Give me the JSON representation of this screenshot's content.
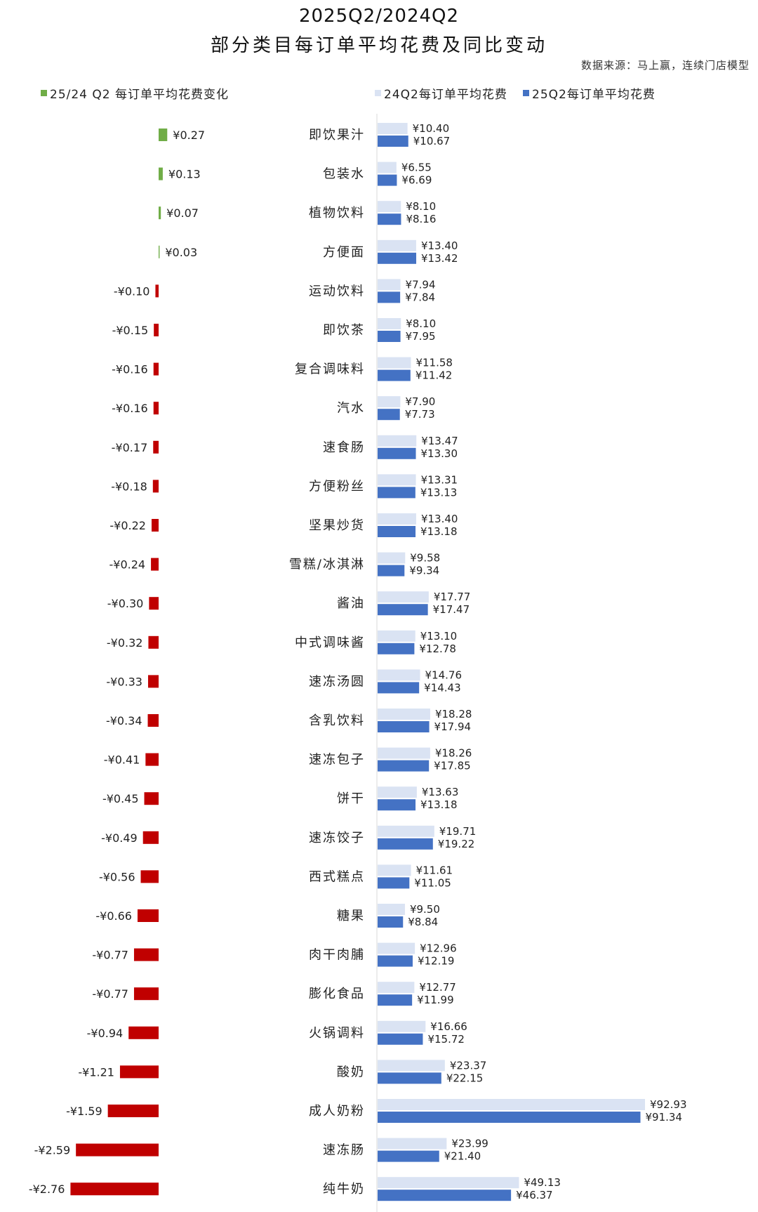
{
  "title_line1": "2025Q2/2024Q2",
  "title_line2": "部分类目每订单平均花费及同比变动",
  "source": "数据来源：马上赢，连续门店模型",
  "legend": {
    "change": "25/24 Q2 每订单平均花费变化",
    "prev": "24Q2每订单平均花费",
    "curr": "25Q2每订单平均花费"
  },
  "colors": {
    "positive": "#70ad47",
    "negative": "#c00000",
    "prev": "#dae3f3",
    "curr": "#4472c4"
  },
  "chart_data": {
    "type": "bar",
    "currency": "¥",
    "categories": [
      "即饮果汁",
      "包装水",
      "植物饮料",
      "方便面",
      "运动饮料",
      "即饮茶",
      "复合调味料",
      "汽水",
      "速食肠",
      "方便粉丝",
      "坚果炒货",
      "雪糕/冰淇淋",
      "酱油",
      "中式调味酱",
      "速冻汤圆",
      "含乳饮料",
      "速冻包子",
      "饼干",
      "速冻饺子",
      "西式糕点",
      "糖果",
      "肉干肉脯",
      "膨化食品",
      "火锅调料",
      "酸奶",
      "成人奶粉",
      "速冻肠",
      "纯牛奶"
    ],
    "series": [
      {
        "name": "25/24 Q2 每订单平均花费变化",
        "values": [
          0.27,
          0.13,
          0.07,
          0.03,
          -0.1,
          -0.15,
          -0.16,
          -0.16,
          -0.17,
          -0.18,
          -0.22,
          -0.24,
          -0.3,
          -0.32,
          -0.33,
          -0.34,
          -0.41,
          -0.45,
          -0.49,
          -0.56,
          -0.66,
          -0.77,
          -0.77,
          -0.94,
          -1.21,
          -1.59,
          -2.59,
          -2.76
        ]
      },
      {
        "name": "24Q2每订单平均花费",
        "values": [
          10.4,
          6.55,
          8.1,
          13.4,
          7.94,
          8.1,
          11.58,
          7.9,
          13.47,
          13.31,
          13.4,
          9.58,
          17.77,
          13.1,
          14.76,
          18.28,
          18.26,
          13.63,
          19.71,
          11.61,
          9.5,
          12.96,
          12.77,
          16.66,
          23.37,
          92.93,
          23.99,
          49.13
        ]
      },
      {
        "name": "25Q2每订单平均花费",
        "values": [
          10.67,
          6.69,
          8.16,
          13.42,
          7.84,
          7.95,
          11.42,
          7.73,
          13.3,
          13.13,
          13.18,
          9.34,
          17.47,
          12.78,
          14.43,
          17.94,
          17.85,
          13.18,
          19.22,
          11.05,
          8.84,
          12.19,
          11.99,
          15.72,
          22.15,
          91.34,
          21.4,
          46.37
        ]
      }
    ],
    "grid": false,
    "legend_position": "top"
  }
}
